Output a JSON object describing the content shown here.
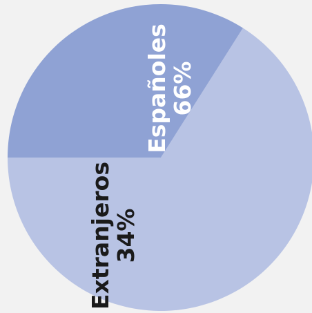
{
  "chart_data": {
    "type": "pie",
    "title": "",
    "slices": [
      {
        "label": "Españoles",
        "value": 66,
        "percent_label": "66%",
        "color": "#b8c3e4",
        "text_color": "#ffffff"
      },
      {
        "label": "Extranjeros",
        "value": 34,
        "percent_label": "34%",
        "color": "#8fa2d4",
        "text_color": "#1a1a1a"
      }
    ],
    "start_angle_deg": 180,
    "direction": "counterclockwise",
    "legend": "none",
    "background": "#f2f2f2"
  }
}
